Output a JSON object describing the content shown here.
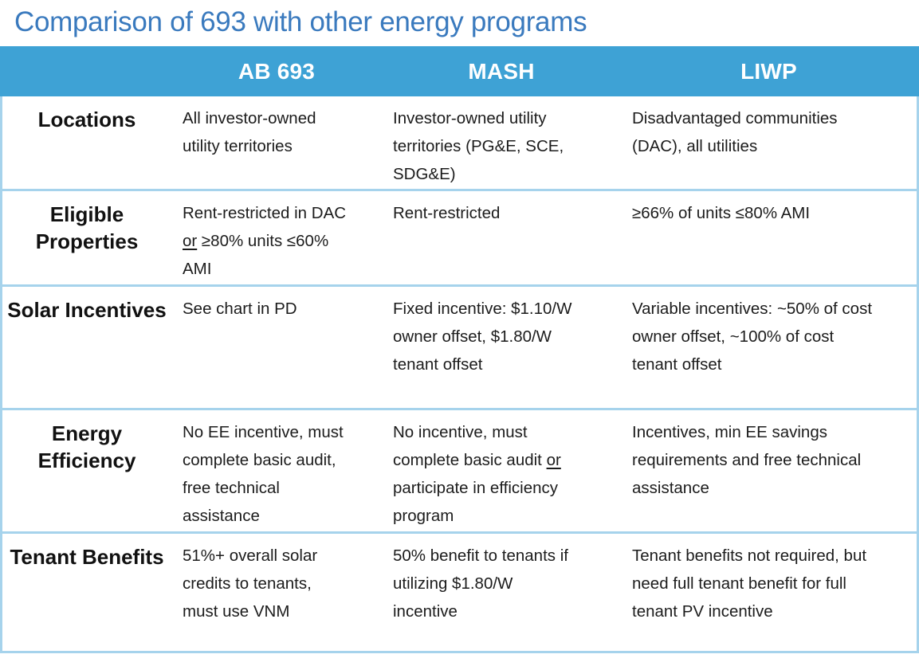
{
  "title": "Comparison of 693 with other energy programs",
  "colors": {
    "title_text": "#3a7abe",
    "header_bg": "#3ea2d5",
    "header_text": "#ffffff",
    "grid_border": "#a6d3ec",
    "body_text": "#1c1c1c"
  },
  "table": {
    "columns": [
      "AB 693",
      "MASH",
      "LIWP"
    ],
    "rows": [
      {
        "header": "Locations",
        "cells": [
          {
            "text": "All investor-owned utility territories"
          },
          {
            "text": "Investor-owned utility territories (PG&E, SCE, SDG&E)"
          },
          {
            "text": "Disadvantaged communities (DAC), all utilities"
          }
        ]
      },
      {
        "header": "Eligible Properties",
        "cells": [
          {
            "pre": "Rent-restricted in DAC ",
            "underlined": "or",
            "post": " ≥80% units ≤60% AMI"
          },
          {
            "text": "Rent-restricted"
          },
          {
            "text": "≥66% of units ≤80% AMI"
          }
        ]
      },
      {
        "header": "Solar Incentives",
        "cells": [
          {
            "text": "See chart in PD"
          },
          {
            "text": "Fixed incentive: $1.10/W owner offset, $1.80/W tenant offset"
          },
          {
            "text": "Variable incentives: ~50% of cost owner offset, ~100% of cost tenant offset"
          }
        ]
      },
      {
        "header": "Energy Efficiency",
        "cells": [
          {
            "text": "No EE incentive, must complete basic audit, free technical assistance"
          },
          {
            "pre": "No incentive, must complete basic audit ",
            "underlined": "or",
            "post": " participate in efficiency program"
          },
          {
            "text": "Incentives, min EE savings requirements and free technical assistance"
          }
        ]
      },
      {
        "header": "Tenant Benefits",
        "cells": [
          {
            "text": "51%+ overall solar credits to tenants, must use VNM"
          },
          {
            "text": "50% benefit to tenants if utilizing $1.80/W incentive"
          },
          {
            "text": "Tenant benefits not required, but need full tenant benefit for full tenant PV incentive"
          }
        ]
      }
    ]
  }
}
